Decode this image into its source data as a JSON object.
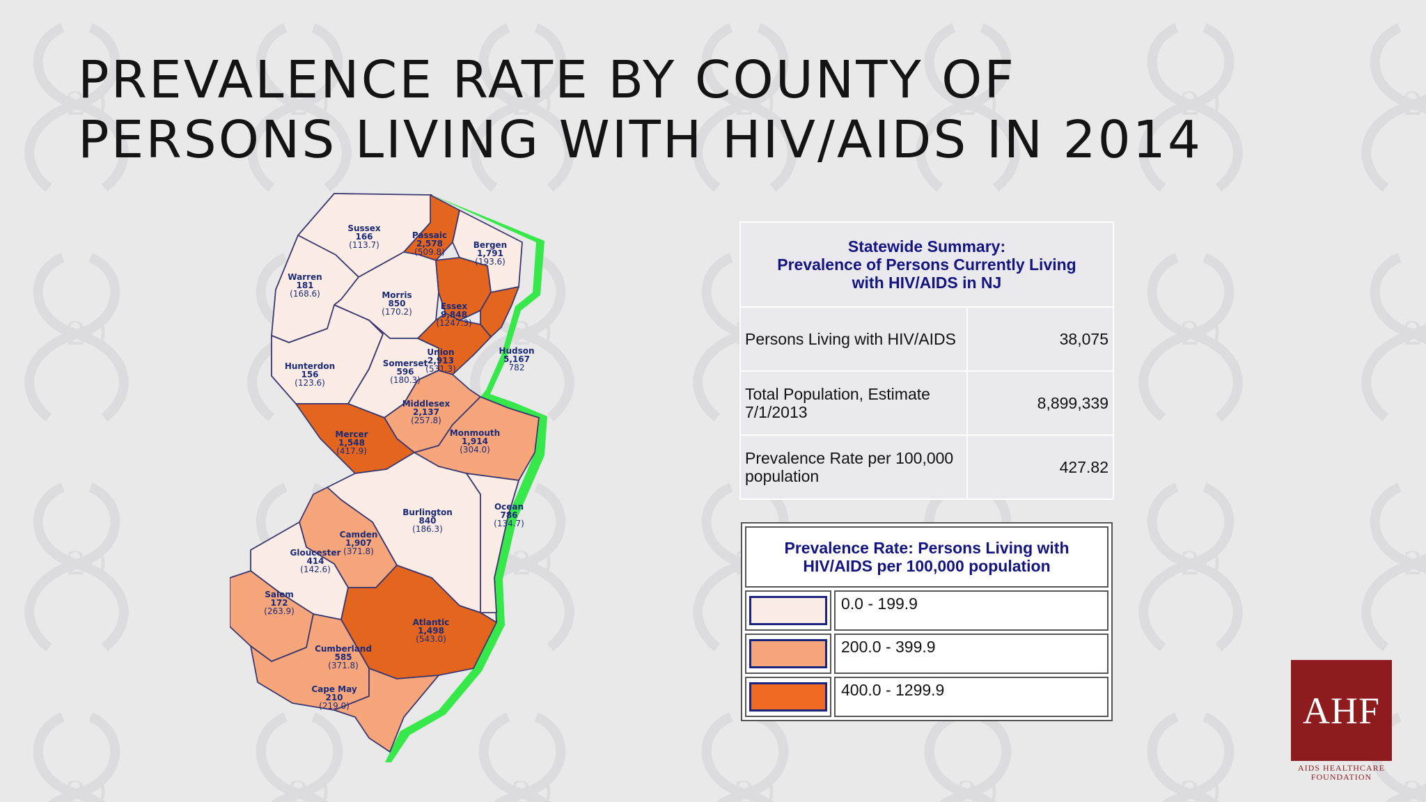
{
  "slide": {
    "title_line1": "PREVALENCE RATE BY COUNTY OF",
    "title_line2": "PERSONS LIVING WITH HIV/AIDS IN 2014"
  },
  "colors": {
    "background": "#e9e9ea",
    "low": "#fbece6",
    "mid": "#f6a67a",
    "high": "#e4661e",
    "coast": "#37e84a",
    "label": "#1a2a78",
    "logo": "#8e1b1e"
  },
  "counties": [
    {
      "name": "Sussex",
      "count": "166",
      "rate": "(113.7)",
      "class": "low"
    },
    {
      "name": "Passaic",
      "count": "2,578",
      "rate": "(509.8)",
      "class": "high"
    },
    {
      "name": "Bergen",
      "count": "1,791",
      "rate": "(193.6)",
      "class": "low"
    },
    {
      "name": "Warren",
      "count": "181",
      "rate": "(168.6)",
      "class": "low"
    },
    {
      "name": "Morris",
      "count": "850",
      "rate": "(170.2)",
      "class": "low"
    },
    {
      "name": "Essex",
      "count": "9,848",
      "rate": "(1247.3)",
      "class": "high"
    },
    {
      "name": "Hudson",
      "count": "5,167",
      "rate": "782",
      "class": "high"
    },
    {
      "name": "Hunterdon",
      "count": "156",
      "rate": "(123.6)",
      "class": "low"
    },
    {
      "name": "Somerset",
      "count": "596",
      "rate": "(180.3)",
      "class": "low"
    },
    {
      "name": "Union",
      "count": "2,913",
      "rate": "(531.3)",
      "class": "high"
    },
    {
      "name": "Middlesex",
      "count": "2,137",
      "rate": "(257.8)",
      "class": "mid"
    },
    {
      "name": "Mercer",
      "count": "1,548",
      "rate": "(417.9)",
      "class": "high"
    },
    {
      "name": "Monmouth",
      "count": "1,914",
      "rate": "(304.0)",
      "class": "mid"
    },
    {
      "name": "Burlington",
      "count": "840",
      "rate": "(186.3)",
      "class": "low"
    },
    {
      "name": "Ocean",
      "count": "786",
      "rate": "(134.7)",
      "class": "low"
    },
    {
      "name": "Camden",
      "count": "1,907",
      "rate": "(371.8)",
      "class": "mid"
    },
    {
      "name": "Gloucester",
      "count": "414",
      "rate": "(142.6)",
      "class": "low"
    },
    {
      "name": "Salem",
      "count": "172",
      "rate": "(263.9)",
      "class": "mid"
    },
    {
      "name": "Atlantic",
      "count": "1,498",
      "rate": "(543.0)",
      "class": "high"
    },
    {
      "name": "Cumberland",
      "count": "585",
      "rate": "(371.8)",
      "class": "mid"
    },
    {
      "name": "Cape May",
      "count": "210",
      "rate": "(219.0)",
      "class": "mid"
    }
  ],
  "summary": {
    "heading_line1": "Statewide Summary:",
    "heading_line2": "Prevalence of Persons Currently Living",
    "heading_line3": "with HIV/AIDS in NJ",
    "rows": [
      {
        "label": "Persons Living with HIV/AIDS",
        "value": "38,075"
      },
      {
        "label": "Total Population, Estimate 7/1/2013",
        "value": "8,899,339"
      },
      {
        "label": "Prevalence Rate per 100,000 population",
        "value": "427.82"
      }
    ]
  },
  "legend": {
    "heading_line1": "Prevalence Rate: Persons Living with",
    "heading_line2": "HIV/AIDS per 100,000 population",
    "items": [
      {
        "range": "0.0 - 199.9",
        "color": "#fbece6"
      },
      {
        "range": "200.0 - 399.9",
        "color": "#f6a67a"
      },
      {
        "range": "400.0 - 1299.9",
        "color": "#f06a24"
      }
    ]
  },
  "logo": {
    "mark": "AHF",
    "line1": "AIDS HEALTHCARE",
    "line2": "FOUNDATION"
  }
}
